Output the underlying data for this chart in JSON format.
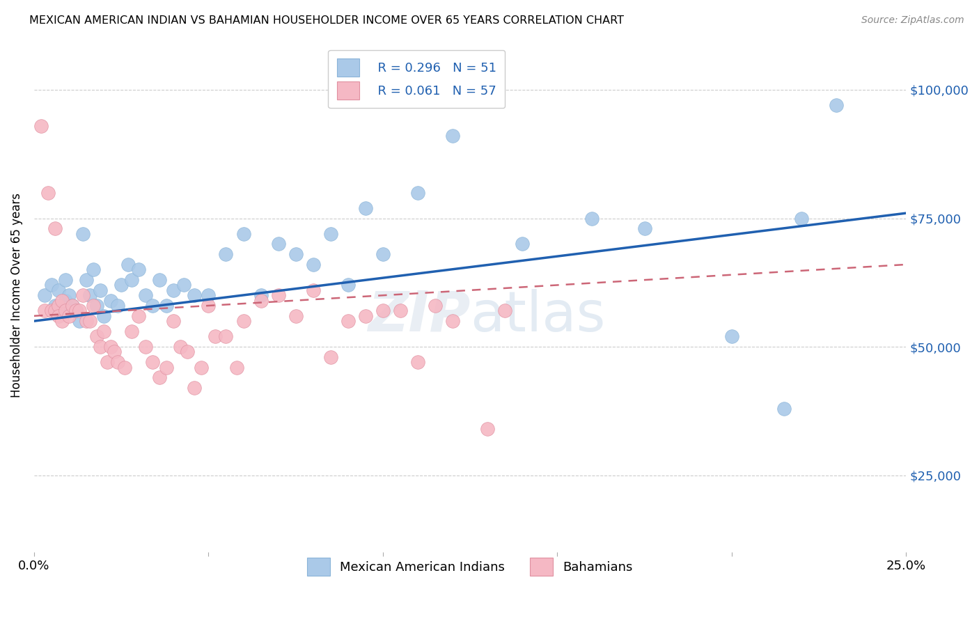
{
  "title": "MEXICAN AMERICAN INDIAN VS BAHAMIAN HOUSEHOLDER INCOME OVER 65 YEARS CORRELATION CHART",
  "source": "Source: ZipAtlas.com",
  "ylabel": "Householder Income Over 65 years",
  "xlim": [
    0.0,
    0.25
  ],
  "ylim": [
    10000,
    110000
  ],
  "yticks": [
    25000,
    50000,
    75000,
    100000
  ],
  "ytick_labels": [
    "$25,000",
    "$50,000",
    "$75,000",
    "$100,000"
  ],
  "xticks": [
    0.0,
    0.05,
    0.1,
    0.15,
    0.2,
    0.25
  ],
  "xtick_labels": [
    "0.0%",
    "",
    "",
    "",
    "",
    "25.0%"
  ],
  "legend_r1": "R = 0.296",
  "legend_n1": "N = 51",
  "legend_r2": "R = 0.061",
  "legend_n2": "N = 57",
  "blue_color": "#aac9e8",
  "pink_color": "#f5b8c4",
  "trend_blue": "#2060b0",
  "trend_pink": "#cc6677",
  "blue_x": [
    0.003,
    0.005,
    0.006,
    0.007,
    0.008,
    0.009,
    0.009,
    0.01,
    0.011,
    0.012,
    0.013,
    0.014,
    0.015,
    0.016,
    0.017,
    0.018,
    0.019,
    0.02,
    0.022,
    0.024,
    0.025,
    0.027,
    0.028,
    0.03,
    0.032,
    0.034,
    0.036,
    0.038,
    0.04,
    0.043,
    0.046,
    0.05,
    0.055,
    0.06,
    0.065,
    0.07,
    0.075,
    0.08,
    0.085,
    0.09,
    0.095,
    0.1,
    0.11,
    0.12,
    0.14,
    0.16,
    0.175,
    0.2,
    0.215,
    0.22,
    0.23
  ],
  "blue_y": [
    60000,
    62000,
    58000,
    61000,
    57000,
    63000,
    59000,
    60000,
    58000,
    57000,
    55000,
    72000,
    63000,
    60000,
    65000,
    58000,
    61000,
    56000,
    59000,
    58000,
    62000,
    66000,
    63000,
    65000,
    60000,
    58000,
    63000,
    58000,
    61000,
    62000,
    60000,
    60000,
    68000,
    72000,
    60000,
    70000,
    68000,
    66000,
    72000,
    62000,
    77000,
    68000,
    80000,
    91000,
    70000,
    75000,
    73000,
    52000,
    38000,
    75000,
    97000
  ],
  "pink_x": [
    0.002,
    0.003,
    0.004,
    0.005,
    0.006,
    0.006,
    0.007,
    0.007,
    0.008,
    0.008,
    0.009,
    0.01,
    0.011,
    0.012,
    0.013,
    0.014,
    0.015,
    0.016,
    0.017,
    0.018,
    0.019,
    0.02,
    0.021,
    0.022,
    0.023,
    0.024,
    0.026,
    0.028,
    0.03,
    0.032,
    0.034,
    0.036,
    0.038,
    0.04,
    0.042,
    0.044,
    0.046,
    0.048,
    0.05,
    0.052,
    0.055,
    0.058,
    0.06,
    0.065,
    0.07,
    0.075,
    0.08,
    0.085,
    0.09,
    0.095,
    0.1,
    0.105,
    0.11,
    0.115,
    0.12,
    0.13,
    0.135
  ],
  "pink_y": [
    93000,
    57000,
    80000,
    57000,
    73000,
    57000,
    58000,
    56000,
    59000,
    55000,
    57000,
    56000,
    58000,
    57000,
    57000,
    60000,
    55000,
    55000,
    58000,
    52000,
    50000,
    53000,
    47000,
    50000,
    49000,
    47000,
    46000,
    53000,
    56000,
    50000,
    47000,
    44000,
    46000,
    55000,
    50000,
    49000,
    42000,
    46000,
    58000,
    52000,
    52000,
    46000,
    55000,
    59000,
    60000,
    56000,
    61000,
    48000,
    55000,
    56000,
    57000,
    57000,
    47000,
    58000,
    55000,
    34000,
    57000
  ]
}
